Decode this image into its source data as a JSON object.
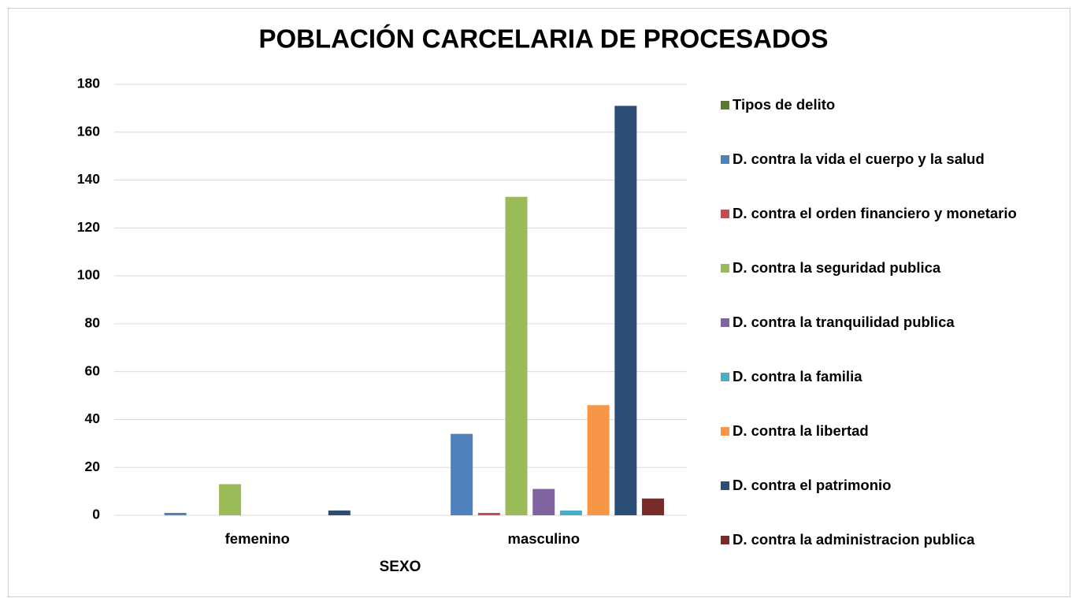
{
  "chart_data": {
    "type": "bar",
    "title": "POBLACIÓN CARCELARIA DE PROCESADOS",
    "x_label": "SEXO",
    "categories": [
      "femenino",
      "masculino"
    ],
    "series": [
      {
        "name": "Tipos de delito",
        "color": "#5a7a32",
        "values": [
          null,
          null
        ]
      },
      {
        "name": "D. contra la vida el cuerpo y la salud",
        "color": "#4f81bd",
        "values": [
          1,
          34
        ]
      },
      {
        "name": "D. contra el orden financiero y monetario",
        "color": "#c0504d",
        "values": [
          0,
          1
        ]
      },
      {
        "name": "D. contra la seguridad publica",
        "color": "#9bbb59",
        "values": [
          13,
          133
        ]
      },
      {
        "name": "D. contra la tranquilidad publica",
        "color": "#8064a2",
        "values": [
          0,
          11
        ]
      },
      {
        "name": "D. contra la familia",
        "color": "#4bacc6",
        "values": [
          0,
          2
        ]
      },
      {
        "name": "D. contra la libertad",
        "color": "#f79646",
        "values": [
          0,
          46
        ]
      },
      {
        "name": "D. contra el patrimonio",
        "color": "#2c4d75",
        "values": [
          2,
          171
        ]
      },
      {
        "name": "D. contra la administracion publica",
        "color": "#772c2a",
        "values": [
          0,
          7
        ]
      }
    ],
    "ylim": [
      0,
      180
    ],
    "yticks": [
      0,
      20,
      40,
      60,
      80,
      100,
      120,
      140,
      160,
      180
    ],
    "grid": true,
    "legend": "right"
  }
}
